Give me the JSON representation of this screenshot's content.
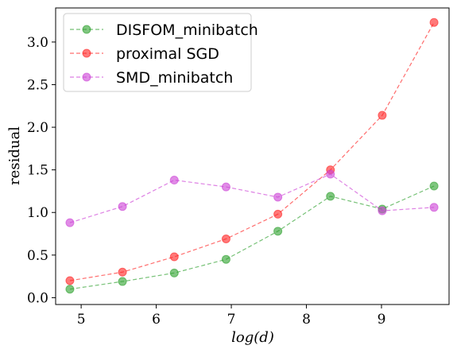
{
  "chart_data": {
    "type": "line",
    "xlabel": "log(d)",
    "ylabel": "residual",
    "xlim": [
      4.66,
      9.9
    ],
    "ylim": [
      -0.08,
      3.4
    ],
    "xticks": [
      5,
      6,
      7,
      8,
      9
    ],
    "xtick_labels": [
      "5",
      "6",
      "7",
      "8",
      "9"
    ],
    "yticks": [
      0.0,
      0.5,
      1.0,
      1.5,
      2.0,
      2.5,
      3.0
    ],
    "ytick_labels": [
      "0.0",
      "0.5",
      "1.0",
      "1.5",
      "2.0",
      "2.5",
      "3.0"
    ],
    "grid": false,
    "legend_position": "top-left",
    "x": [
      4.85,
      5.55,
      6.24,
      6.93,
      7.62,
      8.32,
      9.01,
      9.7
    ],
    "series": [
      {
        "name": "DISFOM_minibatch",
        "color": "#2ca02c",
        "values": [
          0.1,
          0.19,
          0.29,
          0.45,
          0.78,
          1.19,
          1.04,
          1.31
        ]
      },
      {
        "name": "proximal SGD",
        "color": "#ff2020",
        "values": [
          0.2,
          0.3,
          0.48,
          0.69,
          0.98,
          1.5,
          2.14,
          3.23
        ]
      },
      {
        "name": "SMD_minibatch",
        "color": "#cc3fd6",
        "values": [
          0.88,
          1.07,
          1.38,
          1.3,
          1.18,
          1.45,
          1.02,
          1.06
        ]
      }
    ]
  }
}
